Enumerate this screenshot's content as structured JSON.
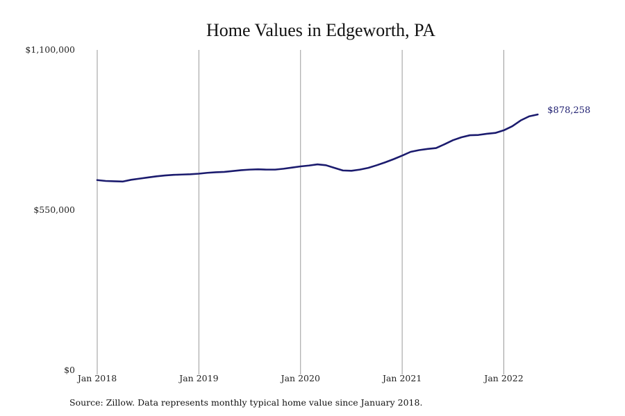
{
  "colors": {
    "line": "#1b1b6e",
    "grid": "#9a9a9a",
    "text": "#111111"
  },
  "source_note": "Source: Zillow. Data represents monthly typical home value since January 2018.",
  "chart_data": {
    "type": "line",
    "title": "Home Values in Edgeworth, PA",
    "xlabel": "",
    "ylabel": "",
    "x": [
      "2018-01",
      "2018-02",
      "2018-03",
      "2018-04",
      "2018-05",
      "2018-06",
      "2018-07",
      "2018-08",
      "2018-09",
      "2018-10",
      "2018-11",
      "2018-12",
      "2019-01",
      "2019-02",
      "2019-03",
      "2019-04",
      "2019-05",
      "2019-06",
      "2019-07",
      "2019-08",
      "2019-09",
      "2019-10",
      "2019-11",
      "2019-12",
      "2020-01",
      "2020-02",
      "2020-03",
      "2020-04",
      "2020-05",
      "2020-06",
      "2020-07",
      "2020-08",
      "2020-09",
      "2020-10",
      "2020-11",
      "2020-12",
      "2021-01",
      "2021-02",
      "2021-03",
      "2021-04",
      "2021-05",
      "2021-06",
      "2021-07",
      "2021-08",
      "2021-09",
      "2021-10",
      "2021-11",
      "2021-12",
      "2022-01",
      "2022-02",
      "2022-03",
      "2022-04",
      "2022-05"
    ],
    "series": [
      {
        "values": [
          653000,
          650000,
          649000,
          648000,
          654000,
          658000,
          662000,
          666000,
          669000,
          671000,
          672000,
          673000,
          675000,
          678000,
          680000,
          681000,
          684000,
          687000,
          689000,
          690000,
          689000,
          689000,
          692000,
          696000,
          700000,
          703000,
          707000,
          704000,
          695000,
          686000,
          685000,
          689000,
          695000,
          704000,
          714000,
          725000,
          737000,
          750000,
          756000,
          760000,
          763000,
          776000,
          790000,
          800000,
          807000,
          808000,
          812000,
          815000,
          824000,
          838000,
          858000,
          872000,
          878258
        ]
      }
    ],
    "xticks": [
      {
        "x": "2018-01",
        "label": "Jan 2018"
      },
      {
        "x": "2019-01",
        "label": "Jan 2019"
      },
      {
        "x": "2020-01",
        "label": "Jan 2020"
      },
      {
        "x": "2021-01",
        "label": "Jan 2021"
      },
      {
        "x": "2022-01",
        "label": "Jan 2022"
      }
    ],
    "yticks": [
      {
        "value": 0,
        "label": "$0"
      },
      {
        "value": 550000,
        "label": "$550,000"
      },
      {
        "value": 1100000,
        "label": "$1,100,000"
      }
    ],
    "ylim": [
      0,
      1100000
    ],
    "grid": "vertical at x ticks",
    "legend": "none",
    "end_label": "$878,258"
  }
}
